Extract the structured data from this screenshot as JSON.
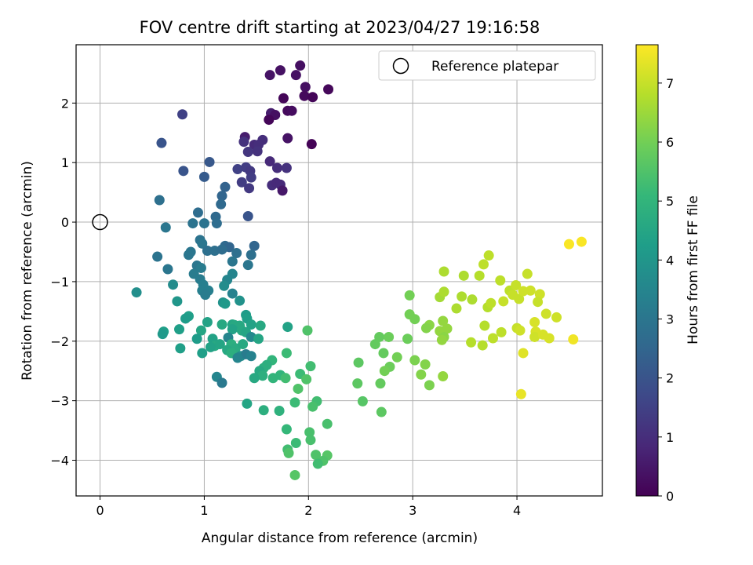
{
  "chart_data": {
    "type": "scatter",
    "title": "FOV centre drift starting at 2023/04/27 19:16:58",
    "xlabel": "Angular distance from reference (arcmin)",
    "ylabel": "Rotation from reference (arcmin)",
    "xlim": [
      -0.23,
      4.82
    ],
    "ylim": [
      -4.6,
      2.98
    ],
    "xticks": [
      0,
      1,
      2,
      3,
      4
    ],
    "yticks": [
      2,
      1,
      0,
      -1,
      -2,
      -3,
      -4
    ],
    "grid": true,
    "legend": {
      "label": "Reference platepar",
      "placement": "top-right"
    },
    "reference_point": {
      "x": 0,
      "y": 0
    },
    "colorbar": {
      "label": "Hours from first FF file",
      "range": [
        0,
        7.65
      ],
      "ticks": [
        0,
        1,
        2,
        3,
        4,
        5,
        6,
        7
      ],
      "colormap": "viridis",
      "stops": [
        "#440154",
        "#482878",
        "#3e4989",
        "#31688e",
        "#26828e",
        "#1f9e89",
        "#35b779",
        "#6ece58",
        "#b5de2b",
        "#fde725"
      ]
    },
    "points": [
      {
        "x": 1.92,
        "y": 2.63,
        "h": 0.3
      },
      {
        "x": 1.73,
        "y": 2.55,
        "h": 0.35
      },
      {
        "x": 1.63,
        "y": 2.47,
        "h": 0.4
      },
      {
        "x": 1.88,
        "y": 2.47,
        "h": 0.35
      },
      {
        "x": 1.97,
        "y": 2.27,
        "h": 0.3
      },
      {
        "x": 2.19,
        "y": 2.23,
        "h": 0.15
      },
      {
        "x": 1.96,
        "y": 2.12,
        "h": 0.2
      },
      {
        "x": 2.04,
        "y": 2.1,
        "h": 0.1
      },
      {
        "x": 1.76,
        "y": 2.08,
        "h": 0.1
      },
      {
        "x": 1.8,
        "y": 1.87,
        "h": 0.2
      },
      {
        "x": 1.84,
        "y": 1.87,
        "h": 0.25
      },
      {
        "x": 1.64,
        "y": 1.83,
        "h": 0.6
      },
      {
        "x": 1.68,
        "y": 1.8,
        "h": 0.3
      },
      {
        "x": 1.62,
        "y": 1.72,
        "h": 0.1
      },
      {
        "x": 0.79,
        "y": 1.81,
        "h": 1.5
      },
      {
        "x": 2.03,
        "y": 1.31,
        "h": 0.05
      },
      {
        "x": 1.8,
        "y": 1.41,
        "h": 0.4
      },
      {
        "x": 1.39,
        "y": 1.43,
        "h": 0.6
      },
      {
        "x": 1.48,
        "y": 1.3,
        "h": 0.9
      },
      {
        "x": 1.38,
        "y": 1.35,
        "h": 1.1
      },
      {
        "x": 1.56,
        "y": 1.38,
        "h": 1.0
      },
      {
        "x": 1.52,
        "y": 1.3,
        "h": 1.0
      },
      {
        "x": 1.42,
        "y": 1.18,
        "h": 1.2
      },
      {
        "x": 1.51,
        "y": 1.19,
        "h": 1.1
      },
      {
        "x": 0.59,
        "y": 1.33,
        "h": 2.0
      },
      {
        "x": 1.05,
        "y": 1.01,
        "h": 2.1
      },
      {
        "x": 0.8,
        "y": 0.86,
        "h": 2.0
      },
      {
        "x": 1.32,
        "y": 0.89,
        "h": 1.5
      },
      {
        "x": 1.4,
        "y": 0.92,
        "h": 1.4
      },
      {
        "x": 1.44,
        "y": 0.86,
        "h": 1.3
      },
      {
        "x": 1.63,
        "y": 1.02,
        "h": 0.9
      },
      {
        "x": 1.7,
        "y": 0.91,
        "h": 1.0
      },
      {
        "x": 1.79,
        "y": 0.91,
        "h": 1.1
      },
      {
        "x": 1.0,
        "y": 0.76,
        "h": 2.2
      },
      {
        "x": 1.45,
        "y": 0.75,
        "h": 1.4
      },
      {
        "x": 1.36,
        "y": 0.67,
        "h": 1.4
      },
      {
        "x": 1.43,
        "y": 0.57,
        "h": 1.3
      },
      {
        "x": 1.65,
        "y": 0.62,
        "h": 1.0
      },
      {
        "x": 1.69,
        "y": 0.66,
        "h": 0.9
      },
      {
        "x": 1.73,
        "y": 0.63,
        "h": 0.9
      },
      {
        "x": 1.75,
        "y": 0.53,
        "h": 0.5
      },
      {
        "x": 1.2,
        "y": 0.59,
        "h": 2.4
      },
      {
        "x": 1.17,
        "y": 0.44,
        "h": 2.5
      },
      {
        "x": 0.57,
        "y": 0.37,
        "h": 2.8
      },
      {
        "x": 1.16,
        "y": 0.3,
        "h": 2.6
      },
      {
        "x": 0.94,
        "y": 0.16,
        "h": 2.7
      },
      {
        "x": 1.11,
        "y": 0.09,
        "h": 2.6
      },
      {
        "x": 1.42,
        "y": 0.1,
        "h": 2.0
      },
      {
        "x": 0.89,
        "y": -0.02,
        "h": 2.9
      },
      {
        "x": 1.0,
        "y": -0.02,
        "h": 2.9
      },
      {
        "x": 1.12,
        "y": -0.02,
        "h": 2.7
      },
      {
        "x": 0.63,
        "y": -0.09,
        "h": 3.0
      },
      {
        "x": 0.96,
        "y": -0.3,
        "h": 2.9
      },
      {
        "x": 0.98,
        "y": -0.36,
        "h": 3.0
      },
      {
        "x": 1.2,
        "y": -0.4,
        "h": 2.6
      },
      {
        "x": 1.24,
        "y": -0.42,
        "h": 2.5
      },
      {
        "x": 1.48,
        "y": -0.4,
        "h": 2.5
      },
      {
        "x": 0.87,
        "y": -0.5,
        "h": 3.0
      },
      {
        "x": 1.03,
        "y": -0.48,
        "h": 2.8
      },
      {
        "x": 1.1,
        "y": -0.48,
        "h": 2.8
      },
      {
        "x": 1.17,
        "y": -0.46,
        "h": 2.7
      },
      {
        "x": 1.31,
        "y": -0.52,
        "h": 2.8
      },
      {
        "x": 0.55,
        "y": -0.58,
        "h": 2.9
      },
      {
        "x": 0.85,
        "y": -0.55,
        "h": 3.0
      },
      {
        "x": 1.45,
        "y": -0.55,
        "h": 2.8
      },
      {
        "x": 1.27,
        "y": -0.66,
        "h": 3.0
      },
      {
        "x": 0.65,
        "y": -0.79,
        "h": 3.0
      },
      {
        "x": 0.93,
        "y": -0.73,
        "h": 3.0
      },
      {
        "x": 0.97,
        "y": -0.77,
        "h": 3.2
      },
      {
        "x": 1.42,
        "y": -0.72,
        "h": 3.0
      },
      {
        "x": 0.9,
        "y": -0.87,
        "h": 3.2
      },
      {
        "x": 1.27,
        "y": -0.87,
        "h": 3.5
      },
      {
        "x": 0.96,
        "y": -0.96,
        "h": 3.2
      },
      {
        "x": 1.22,
        "y": -0.97,
        "h": 3.5
      },
      {
        "x": 0.7,
        "y": -1.05,
        "h": 3.7
      },
      {
        "x": 0.99,
        "y": -1.05,
        "h": 3.3
      },
      {
        "x": 0.98,
        "y": -1.15,
        "h": 3.3
      },
      {
        "x": 1.04,
        "y": -1.15,
        "h": 3.3
      },
      {
        "x": 1.19,
        "y": -1.07,
        "h": 3.7
      },
      {
        "x": 0.35,
        "y": -1.18,
        "h": 3.8
      },
      {
        "x": 1.01,
        "y": -1.22,
        "h": 3.2
      },
      {
        "x": 1.27,
        "y": -1.2,
        "h": 3.4
      },
      {
        "x": 0.74,
        "y": -1.33,
        "h": 4.0
      },
      {
        "x": 1.18,
        "y": -1.35,
        "h": 3.9
      },
      {
        "x": 1.2,
        "y": -1.37,
        "h": 4.1
      },
      {
        "x": 1.34,
        "y": -1.32,
        "h": 3.9
      },
      {
        "x": 0.61,
        "y": -1.84,
        "h": 4.3
      },
      {
        "x": 0.6,
        "y": -1.88,
        "h": 4.1
      },
      {
        "x": 0.85,
        "y": -1.58,
        "h": 4.3
      },
      {
        "x": 0.82,
        "y": -1.62,
        "h": 4.2
      },
      {
        "x": 1.4,
        "y": -1.56,
        "h": 4.2
      },
      {
        "x": 1.41,
        "y": -1.62,
        "h": 4.3
      },
      {
        "x": 1.03,
        "y": -1.68,
        "h": 4.4
      },
      {
        "x": 1.17,
        "y": -1.72,
        "h": 4.6
      },
      {
        "x": 1.27,
        "y": -1.72,
        "h": 4.5
      },
      {
        "x": 1.29,
        "y": -1.73,
        "h": 4.6
      },
      {
        "x": 1.34,
        "y": -1.74,
        "h": 4.6
      },
      {
        "x": 1.45,
        "y": -1.72,
        "h": 4.4
      },
      {
        "x": 1.54,
        "y": -1.74,
        "h": 4.6
      },
      {
        "x": 1.8,
        "y": -1.76,
        "h": 4.4
      },
      {
        "x": 0.76,
        "y": -1.8,
        "h": 4.3
      },
      {
        "x": 0.97,
        "y": -1.82,
        "h": 4.5
      },
      {
        "x": 1.27,
        "y": -1.8,
        "h": 4.4
      },
      {
        "x": 1.36,
        "y": -1.82,
        "h": 4.6
      },
      {
        "x": 1.4,
        "y": -1.85,
        "h": 4.5
      },
      {
        "x": 1.99,
        "y": -1.82,
        "h": 5.5
      },
      {
        "x": 0.93,
        "y": -1.96,
        "h": 4.2
      },
      {
        "x": 1.08,
        "y": -1.96,
        "h": 4.4
      },
      {
        "x": 1.23,
        "y": -1.94,
        "h": 3.5
      },
      {
        "x": 1.45,
        "y": -1.93,
        "h": 3.6
      },
      {
        "x": 1.52,
        "y": -1.96,
        "h": 4.5
      },
      {
        "x": 0.77,
        "y": -2.12,
        "h": 4.3
      },
      {
        "x": 1.1,
        "y": -2.08,
        "h": 4.6
      },
      {
        "x": 1.15,
        "y": -2.05,
        "h": 4.5
      },
      {
        "x": 1.26,
        "y": -2.05,
        "h": 4.8
      },
      {
        "x": 1.3,
        "y": -2.12,
        "h": 4.7
      },
      {
        "x": 1.37,
        "y": -2.05,
        "h": 4.6
      },
      {
        "x": 1.06,
        "y": -2.1,
        "h": 4.4
      },
      {
        "x": 0.98,
        "y": -2.2,
        "h": 4.3
      },
      {
        "x": 1.22,
        "y": -2.15,
        "h": 4.6
      },
      {
        "x": 1.26,
        "y": -2.2,
        "h": 4.8
      },
      {
        "x": 1.35,
        "y": -2.25,
        "h": 3.8
      },
      {
        "x": 1.4,
        "y": -2.22,
        "h": 3.2
      },
      {
        "x": 1.45,
        "y": -2.25,
        "h": 3.4
      },
      {
        "x": 1.32,
        "y": -2.28,
        "h": 3.5
      },
      {
        "x": 1.79,
        "y": -2.2,
        "h": 5.2
      },
      {
        "x": 1.65,
        "y": -2.32,
        "h": 5.0
      },
      {
        "x": 1.6,
        "y": -2.4,
        "h": 4.8
      },
      {
        "x": 1.57,
        "y": -2.45,
        "h": 4.8
      },
      {
        "x": 1.53,
        "y": -2.5,
        "h": 4.6
      },
      {
        "x": 1.56,
        "y": -2.58,
        "h": 4.8
      },
      {
        "x": 1.48,
        "y": -2.62,
        "h": 4.6
      },
      {
        "x": 1.12,
        "y": -2.6,
        "h": 3.5
      },
      {
        "x": 1.17,
        "y": -2.7,
        "h": 3.1
      },
      {
        "x": 1.73,
        "y": -2.57,
        "h": 5.0
      },
      {
        "x": 1.92,
        "y": -2.55,
        "h": 5.2
      },
      {
        "x": 2.02,
        "y": -2.42,
        "h": 5.3
      },
      {
        "x": 1.66,
        "y": -2.62,
        "h": 5.0
      },
      {
        "x": 1.78,
        "y": -2.62,
        "h": 5.3
      },
      {
        "x": 1.98,
        "y": -2.64,
        "h": 5.5
      },
      {
        "x": 1.9,
        "y": -2.8,
        "h": 5.5
      },
      {
        "x": 1.41,
        "y": -3.05,
        "h": 4.5
      },
      {
        "x": 1.87,
        "y": -3.03,
        "h": 5.2
      },
      {
        "x": 2.08,
        "y": -3.01,
        "h": 5.3
      },
      {
        "x": 2.04,
        "y": -3.1,
        "h": 5.4
      },
      {
        "x": 1.57,
        "y": -3.16,
        "h": 4.8
      },
      {
        "x": 1.72,
        "y": -3.17,
        "h": 4.9
      },
      {
        "x": 2.18,
        "y": -3.39,
        "h": 5.4
      },
      {
        "x": 1.79,
        "y": -3.48,
        "h": 5.1
      },
      {
        "x": 2.01,
        "y": -3.53,
        "h": 5.4
      },
      {
        "x": 2.02,
        "y": -3.66,
        "h": 5.4
      },
      {
        "x": 1.88,
        "y": -3.71,
        "h": 5.2
      },
      {
        "x": 1.8,
        "y": -3.82,
        "h": 5.3
      },
      {
        "x": 1.81,
        "y": -3.88,
        "h": 5.5
      },
      {
        "x": 2.07,
        "y": -3.91,
        "h": 5.5
      },
      {
        "x": 2.18,
        "y": -3.92,
        "h": 5.6
      },
      {
        "x": 2.14,
        "y": -4.01,
        "h": 5.5
      },
      {
        "x": 2.09,
        "y": -4.06,
        "h": 5.3
      },
      {
        "x": 1.87,
        "y": -4.25,
        "h": 5.6
      },
      {
        "x": 2.97,
        "y": -1.23,
        "h": 6.0
      },
      {
        "x": 3.3,
        "y": -0.83,
        "h": 6.7
      },
      {
        "x": 3.26,
        "y": -1.26,
        "h": 6.6
      },
      {
        "x": 3.3,
        "y": -1.17,
        "h": 6.7
      },
      {
        "x": 3.42,
        "y": -1.45,
        "h": 6.7
      },
      {
        "x": 2.97,
        "y": -1.55,
        "h": 6.0
      },
      {
        "x": 3.02,
        "y": -1.63,
        "h": 6.0
      },
      {
        "x": 3.16,
        "y": -1.73,
        "h": 6.3
      },
      {
        "x": 3.13,
        "y": -1.78,
        "h": 6.2
      },
      {
        "x": 3.26,
        "y": -1.83,
        "h": 6.4
      },
      {
        "x": 3.33,
        "y": -1.79,
        "h": 6.4
      },
      {
        "x": 3.29,
        "y": -1.66,
        "h": 6.4
      },
      {
        "x": 3.3,
        "y": -1.93,
        "h": 6.3
      },
      {
        "x": 3.28,
        "y": -1.98,
        "h": 6.4
      },
      {
        "x": 2.68,
        "y": -1.93,
        "h": 5.8
      },
      {
        "x": 2.77,
        "y": -1.93,
        "h": 5.9
      },
      {
        "x": 2.64,
        "y": -2.05,
        "h": 5.8
      },
      {
        "x": 2.95,
        "y": -1.96,
        "h": 5.9
      },
      {
        "x": 2.72,
        "y": -2.2,
        "h": 5.8
      },
      {
        "x": 2.85,
        "y": -2.27,
        "h": 6.0
      },
      {
        "x": 2.48,
        "y": -2.36,
        "h": 5.7
      },
      {
        "x": 3.02,
        "y": -2.32,
        "h": 6.1
      },
      {
        "x": 3.12,
        "y": -2.39,
        "h": 6.2
      },
      {
        "x": 2.78,
        "y": -2.43,
        "h": 5.9
      },
      {
        "x": 2.73,
        "y": -2.5,
        "h": 6.0
      },
      {
        "x": 3.08,
        "y": -2.56,
        "h": 6.2
      },
      {
        "x": 3.29,
        "y": -2.59,
        "h": 6.4
      },
      {
        "x": 2.47,
        "y": -2.71,
        "h": 5.7
      },
      {
        "x": 2.69,
        "y": -2.71,
        "h": 5.8
      },
      {
        "x": 3.16,
        "y": -2.74,
        "h": 6.1
      },
      {
        "x": 2.52,
        "y": -3.01,
        "h": 5.6
      },
      {
        "x": 2.7,
        "y": -3.19,
        "h": 5.7
      },
      {
        "x": 3.49,
        "y": -0.9,
        "h": 6.7
      },
      {
        "x": 3.64,
        "y": -0.9,
        "h": 6.8
      },
      {
        "x": 3.68,
        "y": -0.71,
        "h": 6.9
      },
      {
        "x": 3.73,
        "y": -0.56,
        "h": 6.9
      },
      {
        "x": 3.47,
        "y": -1.25,
        "h": 6.7
      },
      {
        "x": 3.57,
        "y": -1.3,
        "h": 6.7
      },
      {
        "x": 3.72,
        "y": -1.43,
        "h": 6.8
      },
      {
        "x": 3.75,
        "y": -1.36,
        "h": 6.9
      },
      {
        "x": 3.87,
        "y": -1.33,
        "h": 7.0
      },
      {
        "x": 3.84,
        "y": -0.98,
        "h": 6.9
      },
      {
        "x": 3.93,
        "y": -1.15,
        "h": 6.9
      },
      {
        "x": 3.96,
        "y": -1.22,
        "h": 7.0
      },
      {
        "x": 3.99,
        "y": -1.06,
        "h": 7.0
      },
      {
        "x": 4.02,
        "y": -1.29,
        "h": 7.0
      },
      {
        "x": 4.06,
        "y": -1.16,
        "h": 7.1
      },
      {
        "x": 4.1,
        "y": -0.87,
        "h": 7.0
      },
      {
        "x": 4.13,
        "y": -1.15,
        "h": 7.1
      },
      {
        "x": 4.22,
        "y": -1.21,
        "h": 7.1
      },
      {
        "x": 4.2,
        "y": -1.34,
        "h": 7.0
      },
      {
        "x": 4.28,
        "y": -1.54,
        "h": 7.1
      },
      {
        "x": 4.38,
        "y": -1.6,
        "h": 7.1
      },
      {
        "x": 3.69,
        "y": -1.74,
        "h": 6.8
      },
      {
        "x": 3.56,
        "y": -2.02,
        "h": 6.8
      },
      {
        "x": 3.67,
        "y": -2.07,
        "h": 6.8
      },
      {
        "x": 3.77,
        "y": -1.95,
        "h": 6.9
      },
      {
        "x": 3.85,
        "y": -1.85,
        "h": 6.9
      },
      {
        "x": 4.0,
        "y": -1.78,
        "h": 7.0
      },
      {
        "x": 4.03,
        "y": -1.82,
        "h": 7.1
      },
      {
        "x": 4.17,
        "y": -1.68,
        "h": 7.2
      },
      {
        "x": 4.18,
        "y": -1.84,
        "h": 7.2
      },
      {
        "x": 4.17,
        "y": -1.93,
        "h": 7.1
      },
      {
        "x": 4.25,
        "y": -1.89,
        "h": 7.2
      },
      {
        "x": 4.31,
        "y": -1.95,
        "h": 7.2
      },
      {
        "x": 4.06,
        "y": -2.2,
        "h": 7.3
      },
      {
        "x": 4.04,
        "y": -2.89,
        "h": 7.4
      },
      {
        "x": 4.54,
        "y": -1.97,
        "h": 7.5
      },
      {
        "x": 4.5,
        "y": -0.37,
        "h": 7.6
      },
      {
        "x": 4.62,
        "y": -0.33,
        "h": 7.6
      }
    ]
  }
}
